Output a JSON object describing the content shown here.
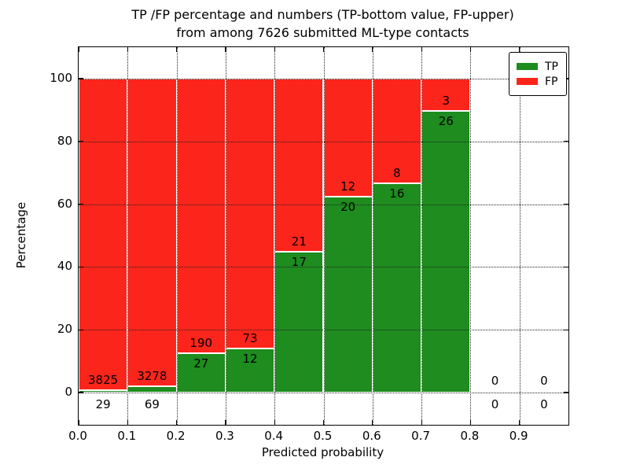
{
  "title": {
    "line1": "TP /FP percentage and numbers (TP-bottom value, FP-upper)",
    "line2": "from among 7626 submitted ML-type contacts"
  },
  "axes": {
    "xlabel": "Predicted probability",
    "ylabel": "Percentage",
    "xticklabels": [
      "0.0",
      "0.1",
      "0.2",
      "0.3",
      "0.4",
      "0.5",
      "0.6",
      "0.7",
      "0.8",
      "0.9"
    ],
    "xtick_values": [
      0.0,
      0.1,
      0.2,
      0.3,
      0.4,
      0.5,
      0.6,
      0.7,
      0.8,
      0.9
    ],
    "yticklabels": [
      "0",
      "20",
      "40",
      "60",
      "80",
      "100"
    ],
    "ytick_values": [
      0,
      20,
      40,
      60,
      80,
      100
    ]
  },
  "legend": {
    "items": [
      {
        "label": "TP",
        "color": "#1e8c1e"
      },
      {
        "label": "FP",
        "color": "#fc251b"
      }
    ]
  },
  "colors": {
    "tp": "#1e8c1e",
    "fp": "#fc251b",
    "bar_edge": "#ffffff",
    "grid": "#222222",
    "spine": "#000000",
    "background": "#ffffff"
  },
  "chart_data": {
    "type": "bar",
    "stacked": true,
    "normalized_to": 100,
    "title": "TP /FP percentage and numbers (TP-bottom value, FP-upper) from among 7626 submitted ML-type contacts",
    "xlabel": "Predicted probability",
    "ylabel": "Percentage",
    "xlim": [
      0.0,
      1.0
    ],
    "ylim": [
      -10.3,
      110
    ],
    "grid": true,
    "legend_position": "upper right",
    "total_contacts": 7626,
    "bin_width": 0.1,
    "series": [
      {
        "name": "TP",
        "role": "bottom"
      },
      {
        "name": "FP",
        "role": "upper"
      }
    ],
    "bins": [
      {
        "x0": 0.0,
        "x1": 0.1,
        "tp": 29,
        "fp": 3825
      },
      {
        "x0": 0.1,
        "x1": 0.2,
        "tp": 69,
        "fp": 3278
      },
      {
        "x0": 0.2,
        "x1": 0.3,
        "tp": 27,
        "fp": 190
      },
      {
        "x0": 0.3,
        "x1": 0.4,
        "tp": 12,
        "fp": 73
      },
      {
        "x0": 0.4,
        "x1": 0.5,
        "tp": 17,
        "fp": 21
      },
      {
        "x0": 0.5,
        "x1": 0.6,
        "tp": 20,
        "fp": 12
      },
      {
        "x0": 0.6,
        "x1": 0.7,
        "tp": 16,
        "fp": 8
      },
      {
        "x0": 0.7,
        "x1": 0.8,
        "tp": 26,
        "fp": 3
      },
      {
        "x0": 0.8,
        "x1": 0.9,
        "tp": 0,
        "fp": 0
      },
      {
        "x0": 0.9,
        "x1": 1.0,
        "tp": 0,
        "fp": 0
      }
    ]
  }
}
